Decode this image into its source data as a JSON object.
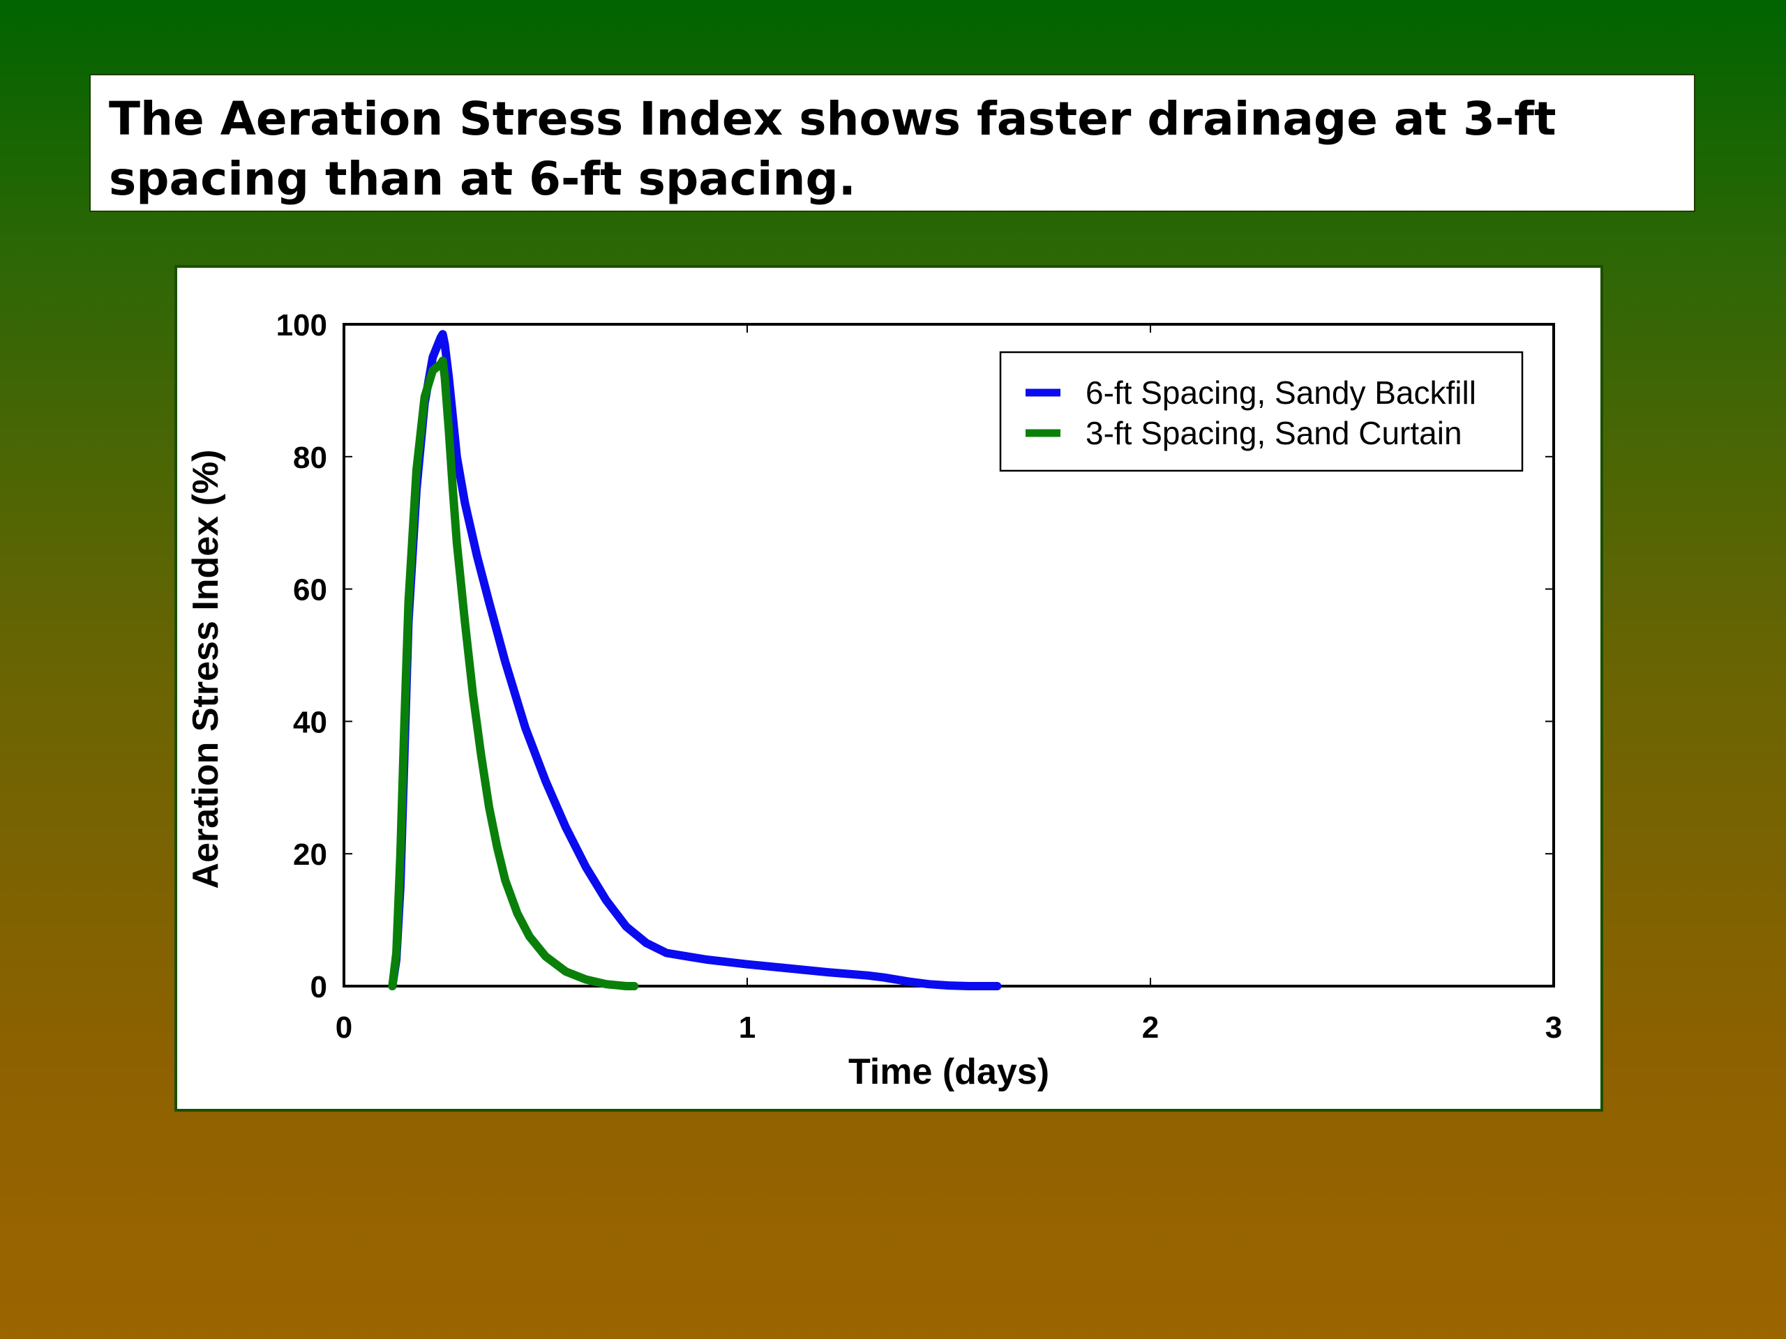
{
  "slide": {
    "title": "The Aeration Stress Index shows faster drainage at 3-ft spacing than at 6-ft spacing."
  },
  "chart_data": {
    "type": "line",
    "xlabel": "Time (days)",
    "ylabel": "Aeration Stress Index (%)",
    "xlim": [
      0,
      3
    ],
    "ylim": [
      0,
      100
    ],
    "xticks": [
      0,
      1,
      2,
      3
    ],
    "yticks": [
      0,
      20,
      40,
      60,
      80,
      100
    ],
    "grid": false,
    "legend_position": "top-right",
    "series": [
      {
        "name": "6-ft Spacing, Sandy Backfill",
        "color": "#0b0bf0",
        "x": [
          0.12,
          0.13,
          0.14,
          0.15,
          0.16,
          0.18,
          0.2,
          0.22,
          0.24,
          0.245,
          0.25,
          0.26,
          0.27,
          0.28,
          0.3,
          0.33,
          0.36,
          0.4,
          0.45,
          0.5,
          0.55,
          0.6,
          0.65,
          0.7,
          0.75,
          0.8,
          0.85,
          0.9,
          1.0,
          1.1,
          1.2,
          1.3,
          1.34,
          1.4,
          1.45,
          1.5,
          1.55,
          1.62
        ],
        "y": [
          0,
          4,
          15,
          35,
          55,
          75,
          88,
          95,
          98,
          98.5,
          97,
          92,
          86,
          80,
          73,
          65,
          58,
          49,
          39,
          31,
          24,
          18,
          13,
          9,
          6.5,
          5,
          4.5,
          4,
          3.3,
          2.7,
          2.1,
          1.6,
          1.3,
          0.7,
          0.3,
          0.1,
          0,
          0
        ]
      },
      {
        "name": "3-ft Spacing, Sand Curtain",
        "color": "#0a800a",
        "x": [
          0.12,
          0.13,
          0.14,
          0.15,
          0.16,
          0.18,
          0.2,
          0.22,
          0.24,
          0.245,
          0.25,
          0.26,
          0.27,
          0.28,
          0.3,
          0.32,
          0.34,
          0.36,
          0.38,
          0.4,
          0.43,
          0.46,
          0.5,
          0.55,
          0.6,
          0.65,
          0.7,
          0.72
        ],
        "y": [
          0,
          5,
          20,
          40,
          58,
          78,
          89,
          93,
          94,
          94.5,
          92,
          84,
          75,
          67,
          55,
          44,
          35,
          27,
          21,
          16,
          11,
          7.5,
          4.5,
          2.2,
          1,
          0.3,
          0,
          0
        ]
      }
    ]
  }
}
